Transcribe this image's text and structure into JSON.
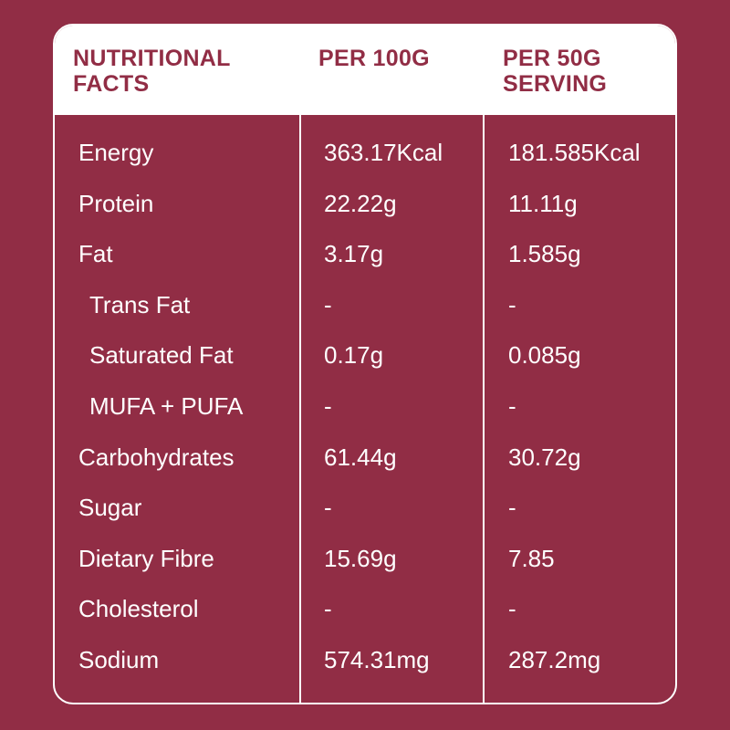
{
  "table": {
    "header": [
      [
        "NUTRITIONAL",
        "FACTS"
      ],
      [
        "PER 100G"
      ],
      [
        "PER 50G",
        "SERVING"
      ]
    ],
    "rows": [
      [
        "Energy",
        "363.17Kcal",
        "181.585Kcal"
      ],
      [
        "Protein",
        "22.22g",
        "11.11g"
      ],
      [
        "Fat",
        "3.17g",
        "1.585g"
      ],
      [
        "Trans Fat",
        "-",
        "-"
      ],
      [
        "Saturated Fat",
        "0.17g",
        "0.085g"
      ],
      [
        "MUFA + PUFA",
        "-",
        "-"
      ],
      [
        "Carbohydrates",
        "61.44g",
        "30.72g"
      ],
      [
        "Sugar",
        "-",
        "-"
      ],
      [
        "Dietary Fibre",
        "15.69g",
        "7.85"
      ],
      [
        "Cholesterol",
        "-",
        "-"
      ],
      [
        "Sodium",
        "574.31mg",
        "287.2mg"
      ]
    ]
  }
}
